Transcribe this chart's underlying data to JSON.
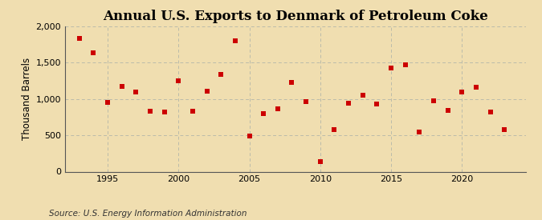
{
  "title": "Annual U.S. Exports to Denmark of Petroleum Coke",
  "ylabel": "Thousand Barrels",
  "source": "Source: U.S. Energy Information Administration",
  "years": [
    1993,
    1994,
    1995,
    1996,
    1997,
    1998,
    1999,
    2000,
    2001,
    2002,
    2003,
    2004,
    2005,
    2006,
    2007,
    2008,
    2009,
    2010,
    2011,
    2012,
    2013,
    2014,
    2015,
    2016,
    2017,
    2018,
    2019,
    2020,
    2021,
    2022,
    2023
  ],
  "values": [
    1830,
    1640,
    950,
    1175,
    1100,
    830,
    820,
    1250,
    830,
    1110,
    1340,
    1800,
    490,
    800,
    870,
    1230,
    960,
    140,
    580,
    940,
    1050,
    930,
    1430,
    1470,
    550,
    970,
    840,
    1100,
    1160,
    820,
    580
  ],
  "marker_color": "#cc0000",
  "marker_size": 5,
  "background_color": "#f0deb0",
  "plot_background_color": "#f0deb0",
  "grid_color": "#bbbbaa",
  "ylim": [
    0,
    2000
  ],
  "yticks": [
    0,
    500,
    1000,
    1500,
    2000
  ],
  "xlim": [
    1992.0,
    2024.5
  ],
  "xticks": [
    1995,
    2000,
    2005,
    2010,
    2015,
    2020
  ],
  "title_fontsize": 12,
  "label_fontsize": 8.5,
  "tick_fontsize": 8,
  "source_fontsize": 7.5
}
